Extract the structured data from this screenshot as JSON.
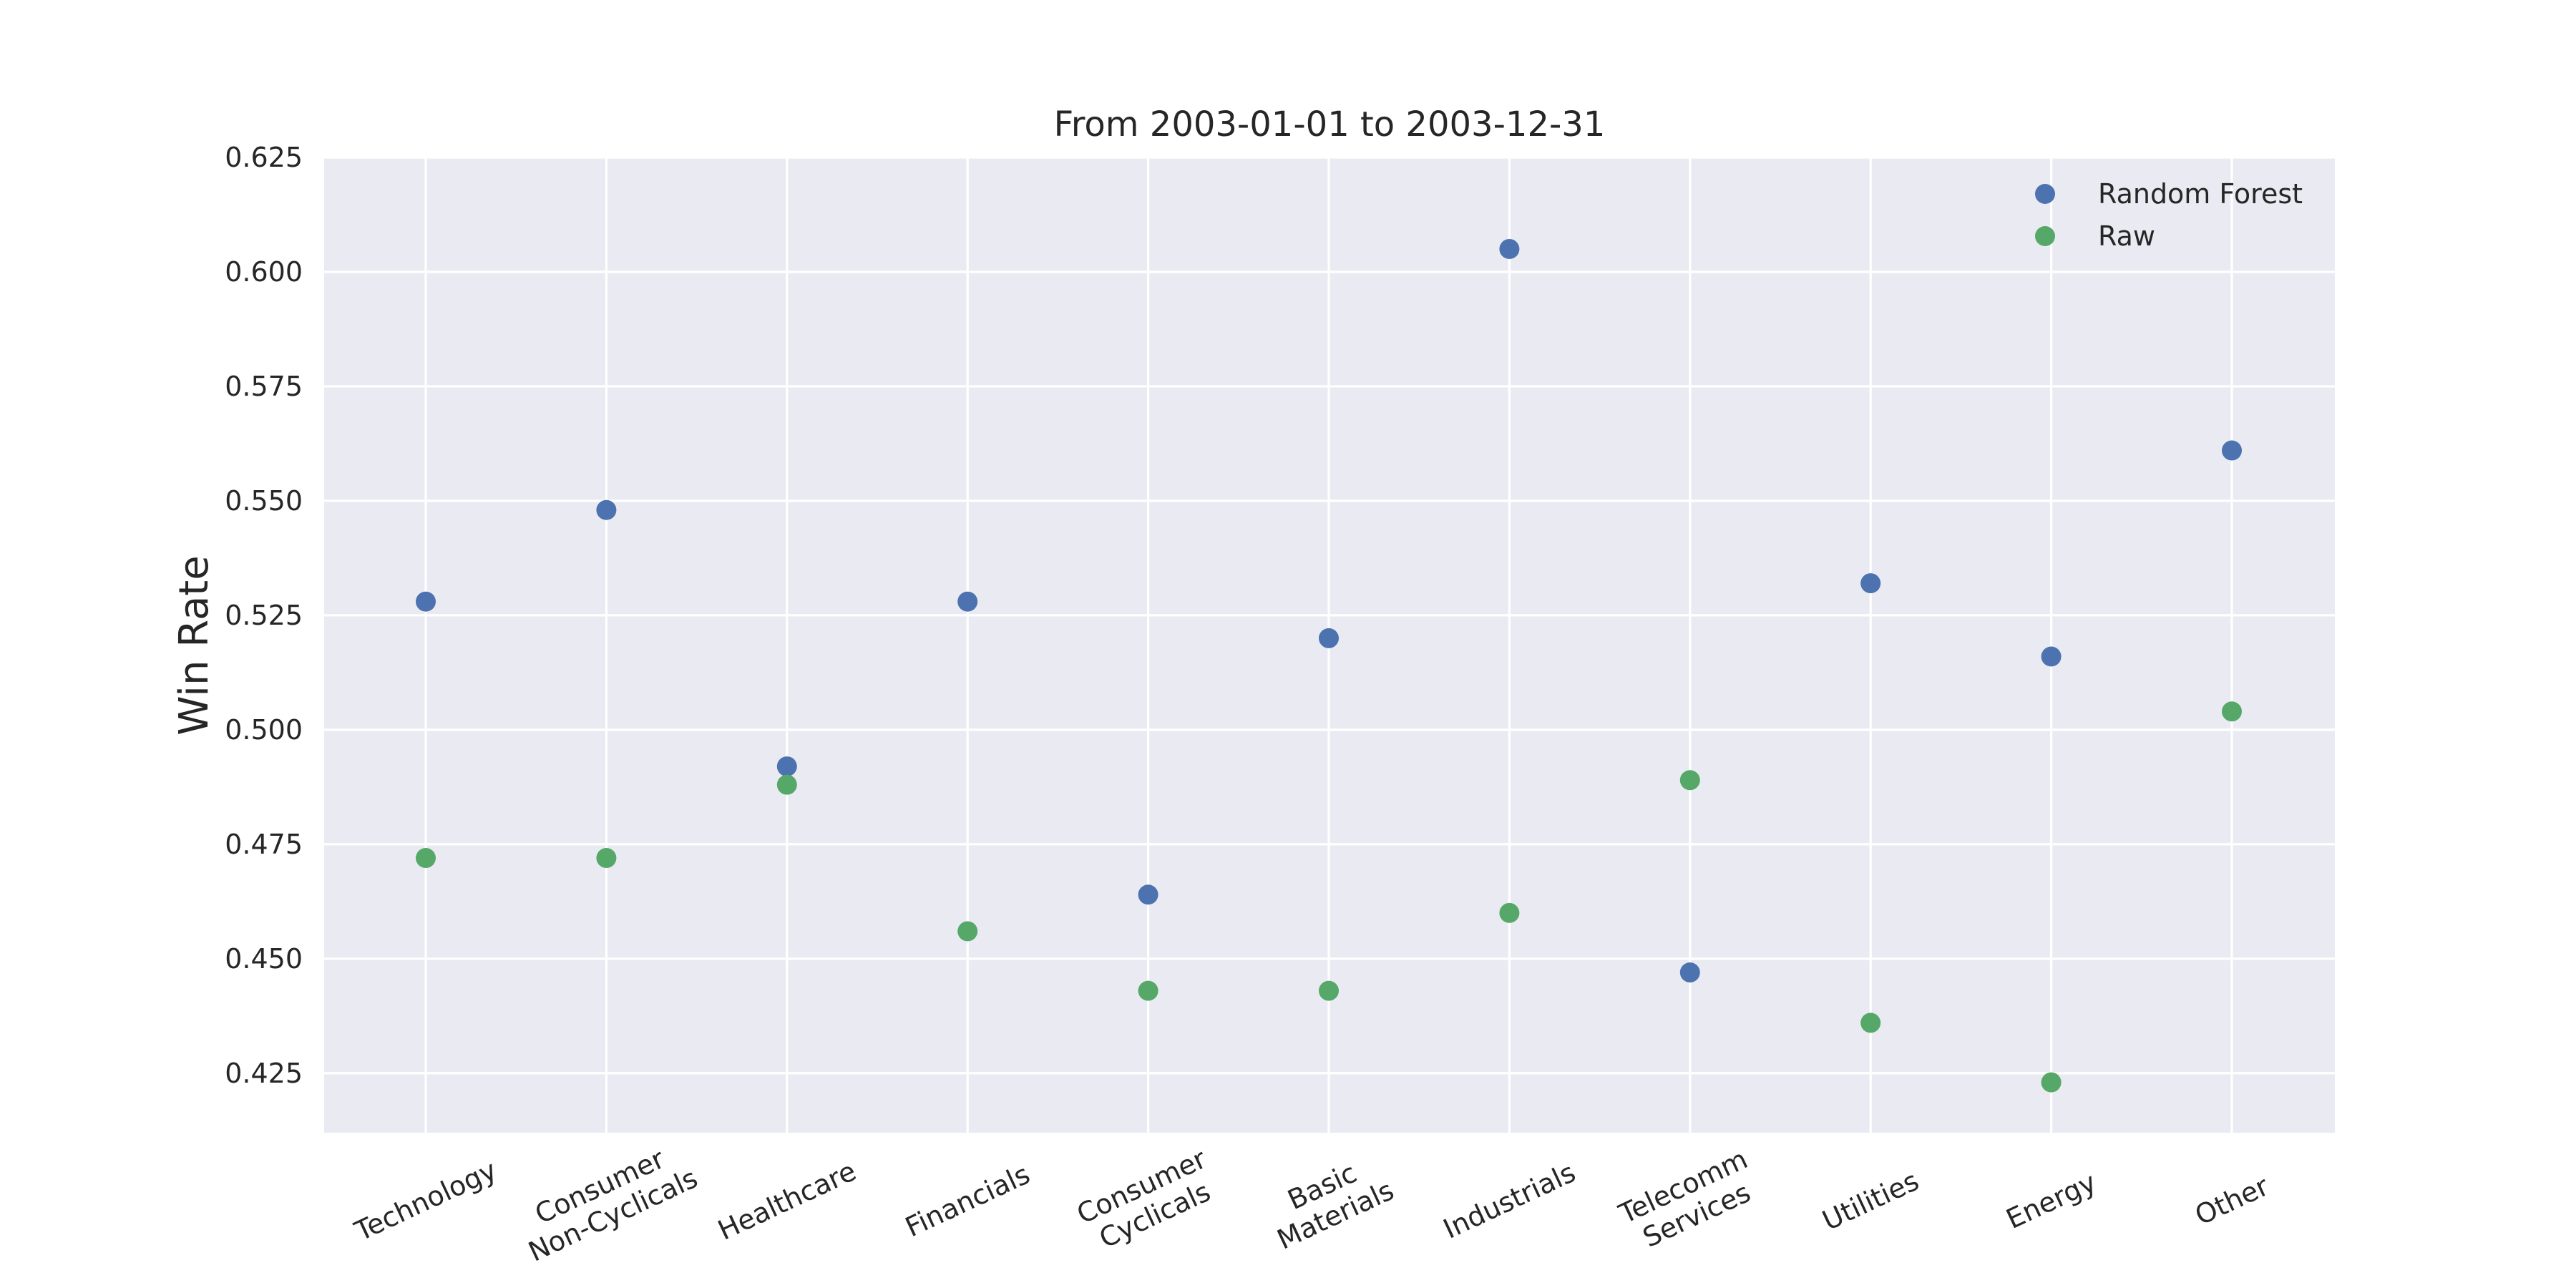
{
  "chart_data": {
    "type": "scatter",
    "title": "From 2003-01-01 to 2003-12-31",
    "xlabel": "",
    "ylabel": "Win Rate",
    "categories": [
      "Technology",
      "Consumer\nNon-Cyclicals",
      "Healthcare",
      "Financials",
      "Consumer\nCyclicals",
      "Basic\nMaterials",
      "Industrials",
      "Telecomm\nServices",
      "Utilities",
      "Energy",
      "Other"
    ],
    "series": [
      {
        "name": "Random Forest",
        "color": "#4c72b0",
        "values": [
          0.528,
          0.548,
          0.492,
          0.528,
          0.464,
          0.52,
          0.605,
          0.447,
          0.532,
          0.516,
          0.561
        ]
      },
      {
        "name": "Raw",
        "color": "#55a868",
        "values": [
          0.472,
          0.472,
          0.488,
          0.456,
          0.443,
          0.443,
          0.46,
          0.489,
          0.436,
          0.423,
          0.504
        ]
      }
    ],
    "ylim": [
      0.412,
      0.625
    ],
    "yticks": [
      0.425,
      0.45,
      0.475,
      0.5,
      0.525,
      0.55,
      0.575,
      0.6,
      0.625
    ],
    "ytick_labels": [
      "0.425",
      "0.450",
      "0.475",
      "0.500",
      "0.525",
      "0.550",
      "0.575",
      "0.600",
      "0.625"
    ],
    "grid": true,
    "legend_position": "top-right"
  }
}
